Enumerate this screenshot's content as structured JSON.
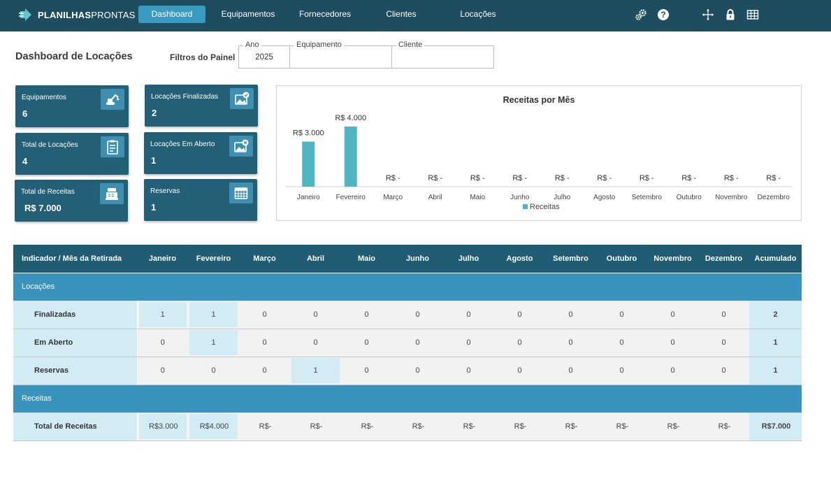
{
  "nav": {
    "logo_bold": "PLANILHAS",
    "logo_light": "PRONTAS",
    "items": [
      {
        "label": "Dashboard",
        "active": true
      },
      {
        "label": "Equipamentos",
        "active": false
      },
      {
        "label": "Fornecedores",
        "active": false
      },
      {
        "label": "Clientes",
        "active": false
      },
      {
        "label": "Locações",
        "active": false
      }
    ],
    "icons": [
      "gears-icon",
      "help-icon",
      "move-icon",
      "lock-icon",
      "grid-icon"
    ]
  },
  "header": {
    "title": "Dashboard de Locações",
    "filters_label": "Filtros do Painel",
    "filters": [
      {
        "legend": "Ano",
        "value": "2025"
      },
      {
        "legend": "Equipamento",
        "value": ""
      },
      {
        "legend": "Cliente",
        "value": ""
      }
    ]
  },
  "kpis": [
    {
      "label": "Equipamentos",
      "value": "6",
      "icon": "excavator-icon"
    },
    {
      "label": "Total de Locações",
      "value": "4",
      "icon": "clipboard-icon"
    },
    {
      "label": "Total de Receitas",
      "value": "R$ 7.000",
      "icon": "cash-register-icon"
    },
    {
      "label": "Locações Finalizadas",
      "value": "2",
      "icon": "image-check-icon"
    },
    {
      "label": "Locações Em Aberto",
      "value": "1",
      "icon": "image-x-icon"
    },
    {
      "label": "Reservas",
      "value": "1",
      "icon": "calendar-icon"
    }
  ],
  "chart_data": {
    "type": "bar",
    "title": "Receitas por Mês",
    "categories": [
      "Janeiro",
      "Fevereiro",
      "Março",
      "Abril",
      "Maio",
      "Junho",
      "Julho",
      "Agosto",
      "Setembro",
      "Outubro",
      "Novembro",
      "Dezembro"
    ],
    "series": [
      {
        "name": "Receitas",
        "values": [
          3000,
          4000,
          0,
          0,
          0,
          0,
          0,
          0,
          0,
          0,
          0,
          0
        ]
      }
    ],
    "data_labels": [
      "R$ 3.000",
      "R$ 4.000",
      "R$ -",
      "R$ -",
      "R$ -",
      "R$ -",
      "R$ -",
      "R$ -",
      "R$ -",
      "R$ -",
      "R$ -",
      "R$ -"
    ],
    "ylim": [
      0,
      4000
    ],
    "legend": "bottom",
    "grid": false,
    "color": "#4fb5c3"
  },
  "table": {
    "header_first": "Indicador / Mês da Retirada",
    "months": [
      "Janeiro",
      "Fevereiro",
      "Março",
      "Abril",
      "Maio",
      "Junho",
      "Julho",
      "Agosto",
      "Setembro",
      "Outubro",
      "Novembro",
      "Dezembro"
    ],
    "header_acc": "Acumulado",
    "sections": [
      {
        "title": "Locações",
        "rows": [
          {
            "label": "Finalizadas",
            "values": [
              "1",
              "1",
              "0",
              "0",
              "0",
              "0",
              "0",
              "0",
              "0",
              "0",
              "0",
              "0"
            ],
            "acc": "2",
            "highlight": [
              0,
              1
            ]
          },
          {
            "label": "Em Aberto",
            "values": [
              "0",
              "1",
              "0",
              "0",
              "0",
              "0",
              "0",
              "0",
              "0",
              "0",
              "0",
              "0"
            ],
            "acc": "1",
            "highlight": [
              1
            ]
          },
          {
            "label": "Reservas",
            "values": [
              "0",
              "0",
              "0",
              "1",
              "0",
              "0",
              "0",
              "0",
              "0",
              "0",
              "0",
              "0"
            ],
            "acc": "1",
            "highlight": [
              3
            ]
          }
        ]
      },
      {
        "title": "Receitas",
        "money_rows": [
          {
            "label": "Total de Receitas",
            "currency": "R$",
            "values": [
              "3.000",
              "4.000",
              "-",
              "-",
              "-",
              "-",
              "-",
              "-",
              "-",
              "-",
              "-",
              "-"
            ],
            "acc": "7.000",
            "highlight": [
              0,
              1
            ]
          }
        ]
      }
    ]
  }
}
